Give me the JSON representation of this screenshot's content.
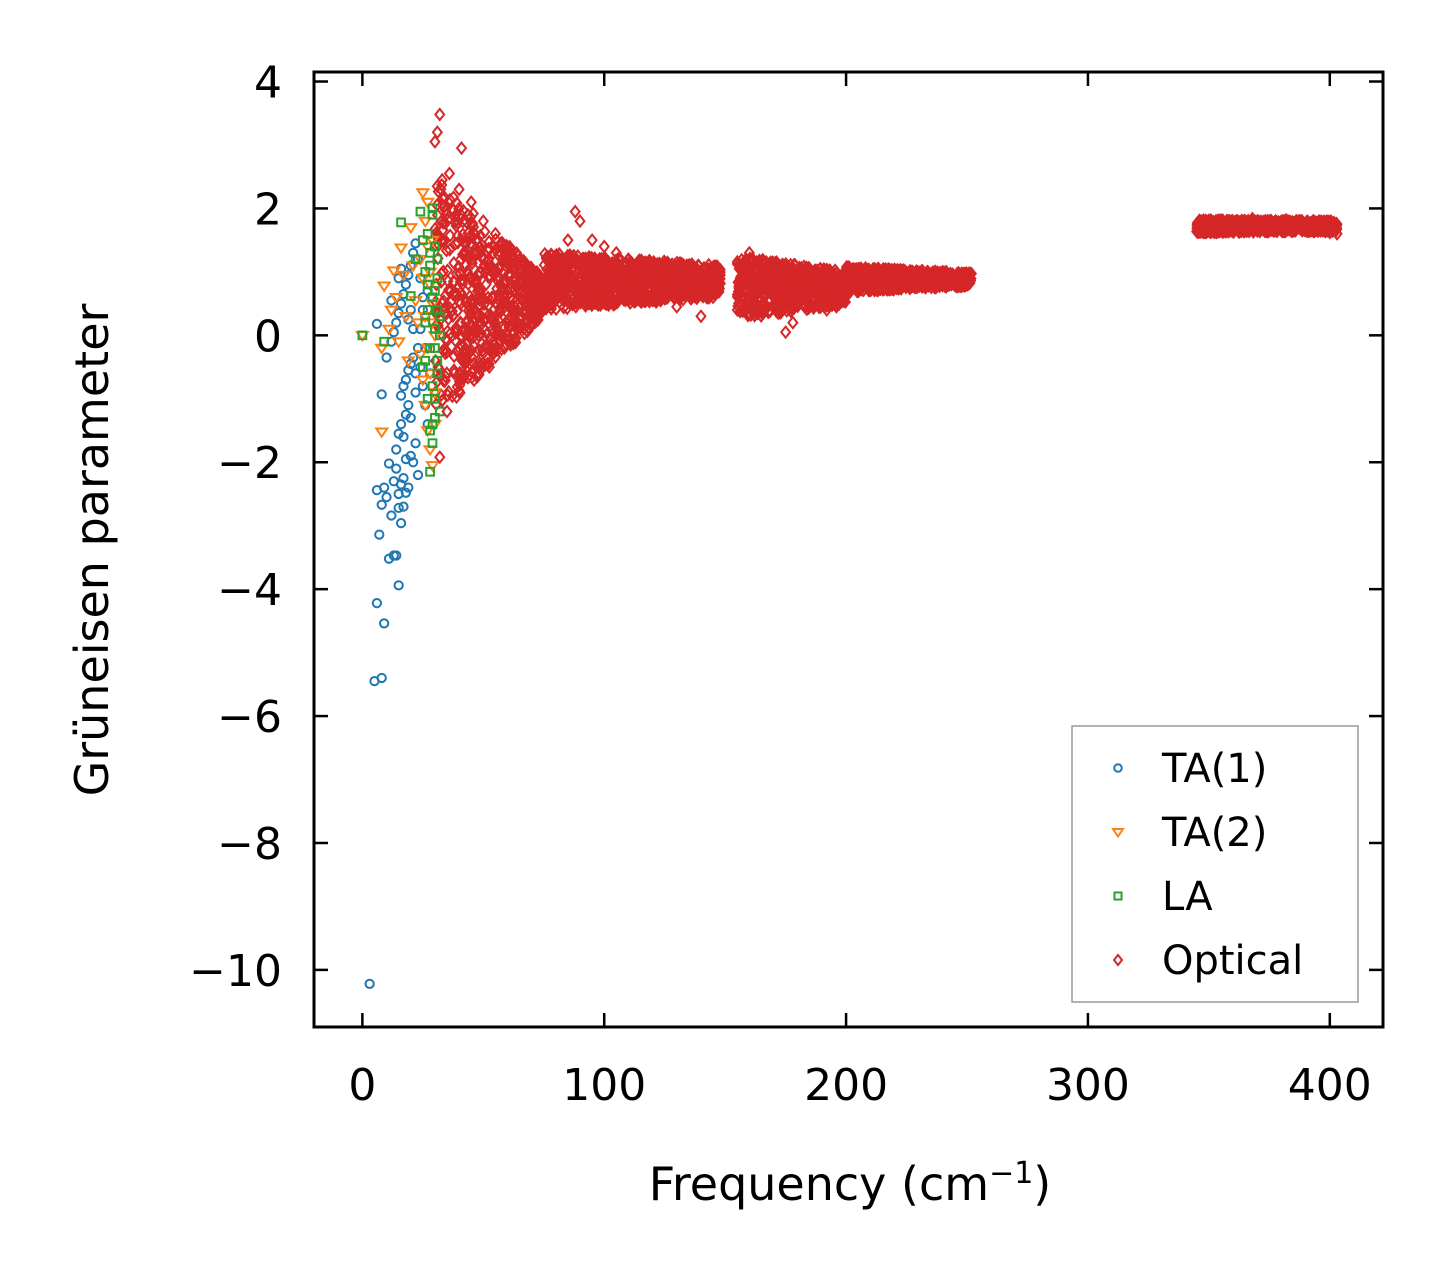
{
  "chart_data": {
    "type": "scatter",
    "title": "",
    "xlabel": "Frequency (cm",
    "xlabel_sup": "−1",
    "xlabel_tail": ")",
    "ylabel": "Grüneisen parameter",
    "xlim": [
      -20,
      422
    ],
    "ylim": [
      -10.9,
      4.15
    ],
    "xticks": [
      0,
      100,
      200,
      300,
      400
    ],
    "yticks": [
      4,
      2,
      0,
      -2,
      -4,
      -6,
      -8,
      -10
    ],
    "xtick_labels": [
      "0",
      "100",
      "200",
      "300",
      "400"
    ],
    "ytick_labels": [
      "4",
      "2",
      "0",
      "−2",
      "−4",
      "−6",
      "−8",
      "−10"
    ],
    "legend_position": "lower-right",
    "series": [
      {
        "name": "TA(1)",
        "marker": "circle",
        "color": "#1f77b4",
        "points": [
          [
            3,
            -10.22
          ],
          [
            5,
            -5.45
          ],
          [
            6,
            -4.22
          ],
          [
            8,
            -5.4
          ],
          [
            9,
            -4.54
          ],
          [
            6,
            -2.44
          ],
          [
            7,
            -3.14
          ],
          [
            8,
            -2.67
          ],
          [
            9,
            -2.4
          ],
          [
            10,
            -2.55
          ],
          [
            11,
            -3.52
          ],
          [
            11,
            -2.02
          ],
          [
            12,
            -2.84
          ],
          [
            13,
            -3.47
          ],
          [
            14,
            -3.47
          ],
          [
            15,
            -3.94
          ],
          [
            15,
            -2.72
          ],
          [
            16,
            -2.96
          ],
          [
            13,
            -2.3
          ],
          [
            14,
            -2.1
          ],
          [
            15,
            -2.5
          ],
          [
            16,
            -2.35
          ],
          [
            17,
            -2.25
          ],
          [
            18,
            -2.48
          ],
          [
            19,
            -2.4
          ],
          [
            14,
            -1.8
          ],
          [
            15,
            -1.55
          ],
          [
            16,
            -1.4
          ],
          [
            17,
            -1.6
          ],
          [
            18,
            -1.25
          ],
          [
            19,
            -1.1
          ],
          [
            20,
            -1.9
          ],
          [
            21,
            -2.0
          ],
          [
            16,
            -0.95
          ],
          [
            17,
            -0.8
          ],
          [
            18,
            -0.7
          ],
          [
            19,
            -0.55
          ],
          [
            20,
            -0.45
          ],
          [
            21,
            -0.35
          ],
          [
            22,
            -0.6
          ],
          [
            12,
            -0.1
          ],
          [
            13,
            0.05
          ],
          [
            14,
            0.2
          ],
          [
            15,
            0.35
          ],
          [
            16,
            0.5
          ],
          [
            17,
            0.65
          ],
          [
            18,
            0.8
          ],
          [
            19,
            0.95
          ],
          [
            20,
            1.1
          ],
          [
            21,
            1.3
          ],
          [
            22,
            1.45
          ],
          [
            23,
            1.2
          ],
          [
            24,
            0.9
          ],
          [
            25,
            0.6
          ],
          [
            26,
            0.3
          ],
          [
            23,
            -0.2
          ],
          [
            24,
            -0.5
          ],
          [
            25,
            -0.8
          ],
          [
            26,
            -1.1
          ],
          [
            27,
            -1.4
          ],
          [
            22,
            -1.7
          ],
          [
            23,
            -2.2
          ],
          [
            8,
            -0.93
          ],
          [
            10,
            -0.35
          ],
          [
            12,
            0.55
          ],
          [
            6,
            0.18
          ],
          [
            17,
            -2.7
          ],
          [
            18,
            -1.95
          ],
          [
            20,
            -1.3
          ],
          [
            22,
            -0.9
          ],
          [
            24,
            0.1
          ],
          [
            25,
            0.4
          ],
          [
            26,
            -0.2
          ],
          [
            27,
            0.7
          ],
          [
            28,
            -0.6
          ],
          [
            19,
            0.25
          ],
          [
            20,
            0.4
          ],
          [
            21,
            0.1
          ],
          [
            15,
            0.9
          ],
          [
            16,
            1.05
          ]
        ]
      },
      {
        "name": "TA(2)",
        "marker": "triangle",
        "color": "#ff7f0e",
        "points": [
          [
            0,
            0.0
          ],
          [
            8,
            -1.52
          ],
          [
            8,
            -0.2
          ],
          [
            9,
            0.78
          ],
          [
            11,
            0.1
          ],
          [
            12,
            0.4
          ],
          [
            13,
            1.02
          ],
          [
            14,
            0.6
          ],
          [
            15,
            -0.1
          ],
          [
            16,
            1.38
          ],
          [
            17,
            0.95
          ],
          [
            18,
            0.3
          ],
          [
            19,
            -0.4
          ],
          [
            20,
            1.7
          ],
          [
            21,
            1.1
          ],
          [
            22,
            0.55
          ],
          [
            23,
            0.2
          ],
          [
            24,
            -0.3
          ],
          [
            25,
            2.25
          ],
          [
            26,
            1.8
          ],
          [
            27,
            1.4
          ],
          [
            28,
            1.0
          ],
          [
            29,
            0.5
          ],
          [
            30,
            0.0
          ],
          [
            25,
            -0.7
          ],
          [
            26,
            -1.1
          ],
          [
            27,
            -1.5
          ],
          [
            28,
            -1.8
          ],
          [
            29,
            -2.05
          ],
          [
            30,
            -1.4
          ],
          [
            27,
            2.1
          ],
          [
            28,
            0.8
          ],
          [
            29,
            0.2
          ],
          [
            30,
            -0.9
          ],
          [
            24,
            1.2
          ],
          [
            25,
            0.9
          ],
          [
            26,
            0.3
          ],
          [
            27,
            -0.2
          ],
          [
            28,
            -0.6
          ],
          [
            29,
            1.5
          ]
        ]
      },
      {
        "name": "LA",
        "marker": "square",
        "color": "#2ca02c",
        "points": [
          [
            0,
            0.0
          ],
          [
            9,
            -0.1
          ],
          [
            16,
            1.78
          ],
          [
            20,
            0.62
          ],
          [
            22,
            1.2
          ],
          [
            24,
            1.95
          ],
          [
            25,
            1.5
          ],
          [
            26,
            1.0
          ],
          [
            27,
            0.4
          ],
          [
            28,
            -0.2
          ],
          [
            29,
            -0.8
          ],
          [
            30,
            -1.3
          ],
          [
            28,
            -2.15
          ],
          [
            29,
            -1.7
          ],
          [
            30,
            -1.0
          ],
          [
            31,
            -0.4
          ],
          [
            32,
            0.3
          ],
          [
            31,
            0.9
          ],
          [
            30,
            1.4
          ],
          [
            29,
            1.9
          ],
          [
            27,
            1.6
          ],
          [
            28,
            1.1
          ],
          [
            29,
            0.6
          ],
          [
            30,
            0.1
          ],
          [
            31,
            -0.6
          ],
          [
            26,
            -0.4
          ],
          [
            27,
            -1.0
          ],
          [
            28,
            -1.5
          ],
          [
            29,
            2.0
          ],
          [
            30,
            0.7
          ],
          [
            31,
            1.2
          ],
          [
            32,
            -1.2
          ],
          [
            26,
            0.2
          ],
          [
            27,
            0.8
          ],
          [
            28,
            1.3
          ],
          [
            25,
            -0.5
          ],
          [
            30,
            -0.2
          ],
          [
            31,
            0.4
          ],
          [
            29,
            -1.4
          ],
          [
            32,
            0.0
          ]
        ]
      },
      {
        "name": "Optical",
        "marker": "diamond",
        "color": "#d62728",
        "points": [
          [
            32,
            3.48
          ],
          [
            31,
            3.2
          ],
          [
            30,
            3.05
          ],
          [
            41,
            2.95
          ],
          [
            36,
            2.55
          ],
          [
            33,
            2.45
          ],
          [
            40,
            2.3
          ],
          [
            45,
            2.1
          ],
          [
            50,
            1.8
          ],
          [
            55,
            1.6
          ],
          [
            60,
            1.4
          ],
          [
            65,
            1.2
          ],
          [
            35,
            -1.2
          ],
          [
            32,
            -1.92
          ],
          [
            38,
            -0.6
          ],
          [
            42,
            -0.3
          ],
          [
            48,
            0.0
          ],
          [
            55,
            0.2
          ],
          [
            60,
            0.35
          ],
          [
            68,
            0.5
          ],
          [
            75,
            0.6
          ],
          [
            80,
            1.2
          ],
          [
            85,
            1.5
          ],
          [
            88,
            1.95
          ],
          [
            90,
            1.8
          ],
          [
            95,
            1.5
          ],
          [
            100,
            1.4
          ],
          [
            105,
            1.3
          ],
          [
            110,
            1.2
          ],
          [
            115,
            1.1
          ],
          [
            120,
            1.0
          ],
          [
            125,
            1.0
          ],
          [
            130,
            0.9
          ],
          [
            135,
            0.8
          ],
          [
            140,
            0.7
          ],
          [
            145,
            0.6
          ],
          [
            140,
            0.3
          ],
          [
            130,
            0.45
          ],
          [
            120,
            0.55
          ],
          [
            110,
            0.65
          ],
          [
            100,
            0.75
          ],
          [
            90,
            0.7
          ],
          [
            80,
            0.55
          ],
          [
            70,
            0.45
          ],
          [
            160,
            1.3
          ],
          [
            165,
            1.1
          ],
          [
            170,
            0.7
          ],
          [
            172,
            0.35
          ],
          [
            175,
            0.05
          ],
          [
            178,
            0.2
          ],
          [
            180,
            0.5
          ],
          [
            185,
            0.75
          ],
          [
            190,
            0.9
          ],
          [
            192,
            0.4
          ],
          [
            195,
            0.6
          ],
          [
            200,
            0.85
          ],
          [
            205,
            1.05
          ],
          [
            210,
            0.95
          ],
          [
            215,
            0.8
          ],
          [
            220,
            0.9
          ],
          [
            225,
            0.85
          ],
          [
            230,
            0.8
          ],
          [
            235,
            0.85
          ],
          [
            240,
            0.9
          ],
          [
            245,
            0.88
          ],
          [
            250,
            0.85
          ],
          [
            175,
            1.05
          ],
          [
            182,
            0.95
          ],
          [
            188,
            0.7
          ],
          [
            196,
            0.45
          ],
          [
            202,
            0.7
          ],
          [
            208,
            0.85
          ],
          [
            346,
            1.7
          ],
          [
            350,
            1.75
          ],
          [
            355,
            1.72
          ],
          [
            360,
            1.78
          ],
          [
            365,
            1.8
          ],
          [
            370,
            1.77
          ],
          [
            375,
            1.8
          ],
          [
            380,
            1.78
          ],
          [
            385,
            1.76
          ],
          [
            390,
            1.72
          ],
          [
            395,
            1.68
          ],
          [
            400,
            1.62
          ],
          [
            403,
            1.6
          ],
          [
            352,
            1.68
          ],
          [
            368,
            1.84
          ],
          [
            382,
            1.82
          ],
          [
            392,
            1.74
          ],
          [
            398,
            1.66
          ]
        ],
        "dense_regions": [
          {
            "x_range": [
              30,
              75
            ],
            "y_center": 0.6,
            "half_width_start": 1.9,
            "half_width_end": 0.3
          },
          {
            "x_range": [
              75,
              148
            ],
            "y_center": 0.85,
            "half_width_start": 0.45,
            "half_width_end": 0.25
          },
          {
            "x_range": [
              155,
              200
            ],
            "y_center": 0.75,
            "half_width_start": 0.5,
            "half_width_end": 0.25
          },
          {
            "x_range": [
              200,
              252
            ],
            "y_center": 0.88,
            "half_width_start": 0.2,
            "half_width_end": 0.1
          },
          {
            "x_range": [
              345,
              403
            ],
            "y_center": 1.72,
            "half_width_start": 0.1,
            "half_width_end": 0.08
          }
        ]
      }
    ]
  }
}
